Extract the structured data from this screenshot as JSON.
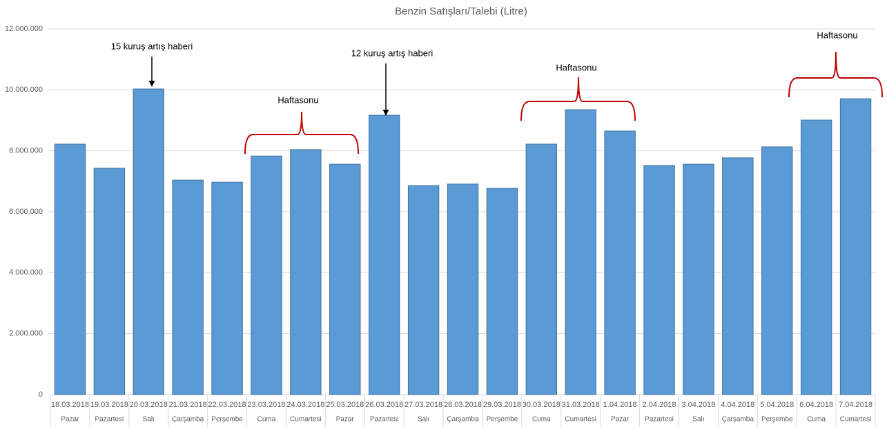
{
  "chart_data": {
    "type": "bar",
    "title": "Benzin Satışları/Talebi (Litre)",
    "categories": [
      "18.03.2018",
      "19.03.2018",
      "20.03.2018",
      "21.03.2018",
      "22.03.2018",
      "23.03.2018",
      "24.03.2018",
      "25.03.2018",
      "26.03.2018",
      "27.03.2018",
      "28.03.2018",
      "29.03.2018",
      "30.03.2018",
      "31.03.2018",
      "1.04.2018",
      "2.04.2018",
      "3.04.2018",
      "4.04.2018",
      "5.04.2018",
      "6.04.2018",
      "7.04.2018"
    ],
    "weekdays": [
      "Pazar",
      "Pazartesi",
      "Salı",
      "Çarşamba",
      "Perşembe",
      "Cuma",
      "Cumartesi",
      "Pazar",
      "Pazartesi",
      "Salı",
      "Çarşamba",
      "Perşembe",
      "Cuma",
      "Cumartesi",
      "Pazar",
      "Pazartesi",
      "Salı",
      "Çarşamba",
      "Perşembe",
      "Cuma",
      "Cumartesi"
    ],
    "values": [
      8220000,
      7430000,
      10030000,
      7040000,
      6970000,
      7830000,
      8040000,
      7560000,
      9170000,
      6860000,
      6910000,
      6770000,
      8220000,
      9350000,
      8650000,
      7520000,
      7560000,
      7770000,
      8130000,
      9010000,
      9710000
    ],
    "color": "#5b9bd5",
    "ylim": [
      0,
      12000000
    ],
    "yticks": [
      0,
      {
        "value": 2000000,
        "label": "2.000.000"
      },
      {
        "value": 4000000,
        "label": "4.000.000"
      },
      {
        "value": 6000000,
        "label": "6.000.000"
      },
      {
        "value": 8000000,
        "label": "8.000.000"
      },
      {
        "value": 10000000,
        "label": "10.000.000"
      },
      {
        "value": 12000000,
        "label": "12.000.000"
      }
    ],
    "grid": true,
    "annotations": [
      "15 kuruş artış haberi",
      "12 kuruş artış haberi",
      "Haftasonu",
      "Haftasonu",
      "Haftasonu"
    ]
  }
}
